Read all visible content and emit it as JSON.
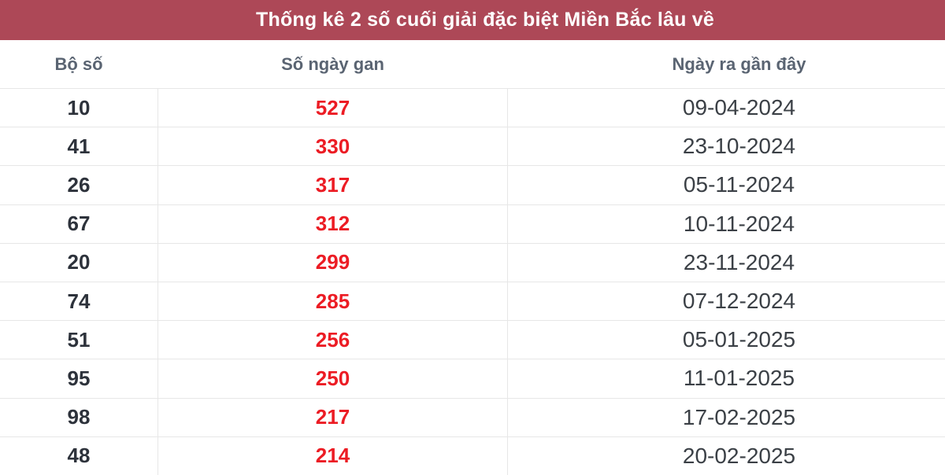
{
  "title": "Thống kê 2 số cuối giải đặc biệt Miền Bắc lâu về",
  "table": {
    "columns": {
      "number": "Bộ số",
      "gap_days": "Số ngày gan",
      "last_date": "Ngày ra gần đây"
    },
    "rows": [
      {
        "number": "10",
        "gap_days": "527",
        "last_date": "09-04-2024"
      },
      {
        "number": "41",
        "gap_days": "330",
        "last_date": "23-10-2024"
      },
      {
        "number": "26",
        "gap_days": "317",
        "last_date": "05-11-2024"
      },
      {
        "number": "67",
        "gap_days": "312",
        "last_date": "10-11-2024"
      },
      {
        "number": "20",
        "gap_days": "299",
        "last_date": "23-11-2024"
      },
      {
        "number": "74",
        "gap_days": "285",
        "last_date": "07-12-2024"
      },
      {
        "number": "51",
        "gap_days": "256",
        "last_date": "05-01-2025"
      },
      {
        "number": "95",
        "gap_days": "250",
        "last_date": "11-01-2025"
      },
      {
        "number": "98",
        "gap_days": "217",
        "last_date": "17-02-2025"
      },
      {
        "number": "48",
        "gap_days": "214",
        "last_date": "20-02-2025"
      }
    ]
  },
  "colors": {
    "title_bar_bg": "#ad4857",
    "title_text": "#ffffff",
    "column_header_text": "#5a6472",
    "number_text": "#2d323b",
    "gap_days_text": "#ec1c24",
    "date_text": "#3b4046",
    "row_border": "#e7e7e7"
  }
}
